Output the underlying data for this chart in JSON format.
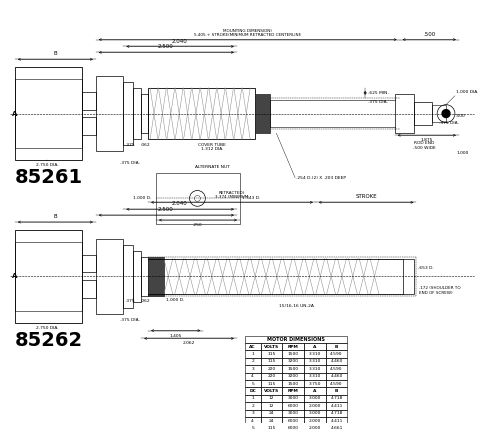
{
  "bg_color": "#ffffff",
  "line_color": "#000000",
  "model1": "85261",
  "model2": "85262",
  "table_headers_ac": [
    "AC",
    "VOLTS",
    "RPM",
    "A",
    "B"
  ],
  "table_data_ac": [
    [
      "1",
      "115",
      "1500",
      "3.310",
      "4.590"
    ],
    [
      "2",
      "115",
      "3200",
      "3.310",
      "4.460"
    ],
    [
      "3",
      "220",
      "1500",
      "3.310",
      "4.590"
    ],
    [
      "4",
      "220",
      "3200",
      "3.310",
      "4.460"
    ],
    [
      "5",
      "115",
      "1500",
      "3.750",
      "4.590"
    ]
  ],
  "table_headers_dc": [
    "DC",
    "VOLTS",
    "RPM",
    "A",
    "B"
  ],
  "table_data_dc": [
    [
      "1",
      "12",
      "3000",
      "3.000",
      "4.718"
    ],
    [
      "2",
      "12",
      "6000",
      "2.000",
      "4.411"
    ],
    [
      "3",
      "24",
      "3000",
      "3.000",
      "4.718"
    ],
    [
      "4",
      "24",
      "6000",
      "2.000",
      "4.411"
    ],
    [
      "5",
      "115",
      "6000",
      "2.000",
      "4.661"
    ]
  ],
  "motor_dimensions_title": "MOTOR DIMENSIONS"
}
